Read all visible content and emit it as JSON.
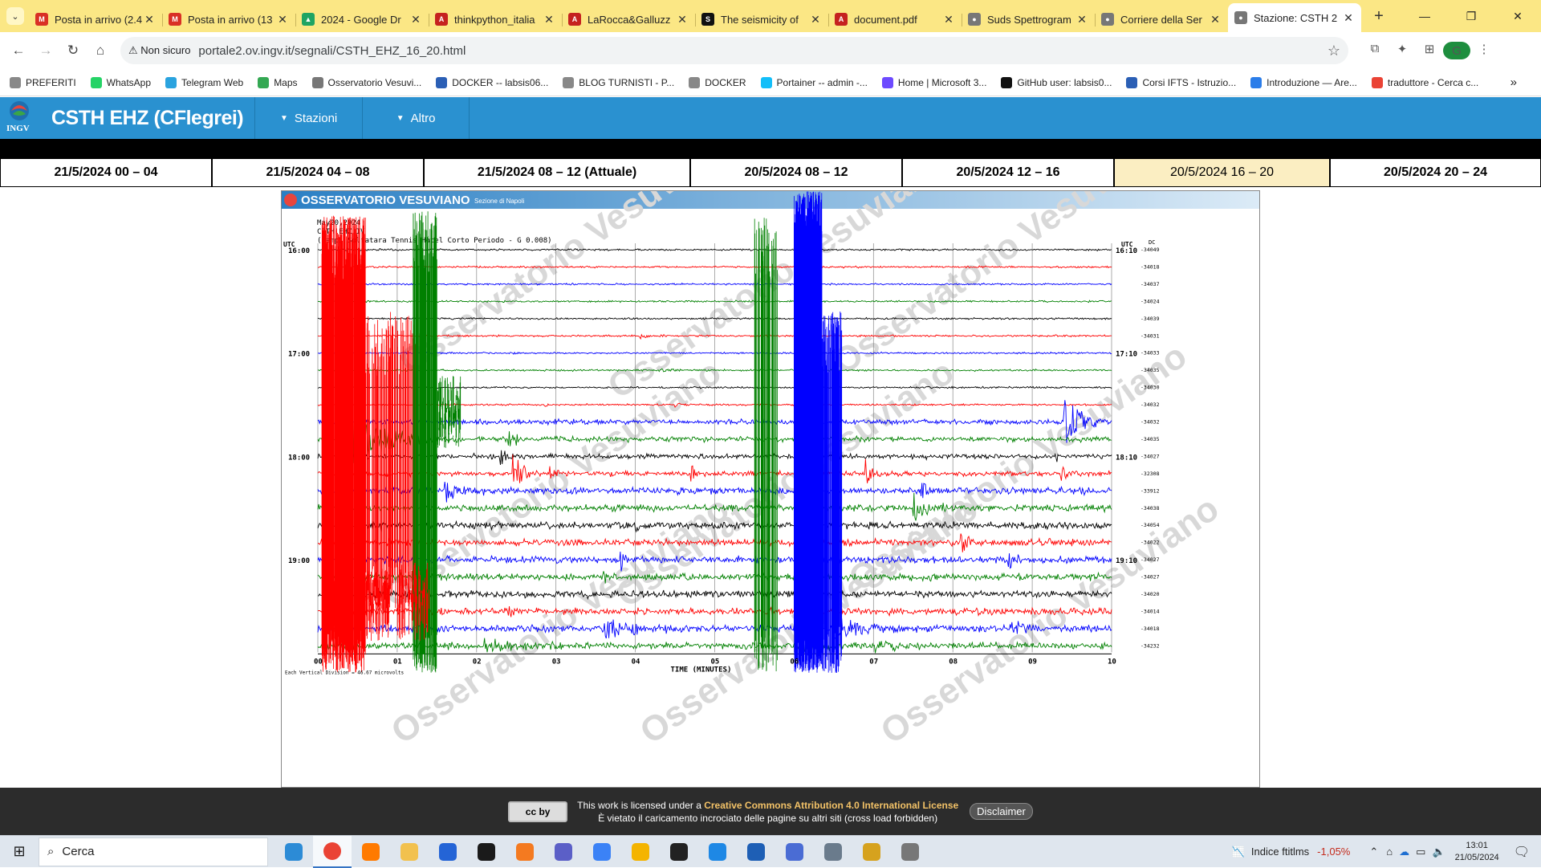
{
  "browser": {
    "tabs": [
      {
        "title": "Posta in arrivo (2.4",
        "fav_color": "#d93025",
        "fav_text": "M"
      },
      {
        "title": "Posta in arrivo (13",
        "fav_color": "#d93025",
        "fav_text": "M"
      },
      {
        "title": "2024 - Google Dr",
        "fav_color": "#1fa463",
        "fav_text": "▲"
      },
      {
        "title": "thinkpython_italia",
        "fav_color": "#c5221f",
        "fav_text": "A"
      },
      {
        "title": "LaRocca&Galluzz",
        "fav_color": "#c5221f",
        "fav_text": "A"
      },
      {
        "title": "The seismicity of",
        "fav_color": "#111111",
        "fav_text": "S"
      },
      {
        "title": "document.pdf",
        "fav_color": "#c5221f",
        "fav_text": "A"
      },
      {
        "title": "Suds Spettrogram",
        "fav_color": "#777777",
        "fav_text": "●"
      },
      {
        "title": "Corriere della Ser",
        "fav_color": "#777777",
        "fav_text": "●"
      },
      {
        "title": "Stazione: CSTH 2",
        "fav_color": "#777777",
        "fav_text": "●",
        "active": true
      }
    ],
    "security_label": "Non sicuro",
    "url": "portale2.ov.ingv.it/segnali/CSTH_EHZ_16_20.html",
    "profile_initial": "G",
    "bookmarks": [
      {
        "label": "PREFERITI",
        "color": "#888888"
      },
      {
        "label": "WhatsApp",
        "color": "#25d366"
      },
      {
        "label": "Telegram Web",
        "color": "#2aa3df"
      },
      {
        "label": "Maps",
        "color": "#34a853"
      },
      {
        "label": "Osservatorio Vesuvi...",
        "color": "#777777"
      },
      {
        "label": "DOCKER -- labsis06...",
        "color": "#2b5fb5"
      },
      {
        "label": "BLOG TURNISTI - P...",
        "color": "#888888"
      },
      {
        "label": "DOCKER",
        "color": "#888888"
      },
      {
        "label": "Portainer -- admin -...",
        "color": "#13bef9"
      },
      {
        "label": "Home | Microsoft 3...",
        "color": "#6d4aff"
      },
      {
        "label": "GitHub user: labsis0...",
        "color": "#111111"
      },
      {
        "label": "Corsi IFTS - Istruzio...",
        "color": "#2b5fb5"
      },
      {
        "label": "Introduzione — Are...",
        "color": "#2b7de9"
      },
      {
        "label": "traduttore - Cerca c...",
        "color": "#ea4335"
      }
    ]
  },
  "site": {
    "logo_text": "INGV",
    "title": "CSTH EHZ (CFlegrei)",
    "menu": [
      "Stazioni",
      "Altro"
    ]
  },
  "time_tabs": [
    {
      "label": "21/5/2024 00 – 04"
    },
    {
      "label": "21/5/2024 04 – 08"
    },
    {
      "label": "21/5/2024 08 – 12 (Attuale)"
    },
    {
      "label": "20/5/2024 08 – 12"
    },
    {
      "label": "20/5/2024 12 – 16"
    },
    {
      "label": "20/5/2024 16 – 20",
      "selected": true
    },
    {
      "label": "20/5/2024 20 – 24"
    }
  ],
  "seismogram": {
    "banner_title": "OSSERVATORIO VESUVIANO",
    "banner_sub": "Sezione di Napoli",
    "header_lines": [
      "May20,2024",
      "CSTH EHZ IV",
      "(Campi Solfatara Tennis Hotel Corto Periodo - G 0.008)"
    ],
    "left_axis_label": "UTC",
    "right_axis_label": "UTC",
    "dc_label": "DC",
    "left_hours": [
      "16:00",
      "17:00",
      "18:00",
      "19:00"
    ],
    "right_hours": [
      "16:10",
      "17:10",
      "18:10",
      "19:10"
    ],
    "dc_values": [
      "-34049",
      "-34018",
      "-34037",
      "-34024",
      "-34039",
      "-34031",
      "-34033",
      "-34035",
      "-34030",
      "-34032",
      "-34032",
      "-34035",
      "-34027",
      "-32308",
      "-33912",
      "-34038",
      "-34054",
      "-34022",
      "-34027",
      "-34027",
      "-34020",
      "-34014",
      "-34018",
      "-34232"
    ],
    "x_ticks": [
      "00",
      "01",
      "02",
      "03",
      "04",
      "05",
      "06",
      "07",
      "08",
      "09",
      "10"
    ],
    "x_label": "TIME (MINUTES)",
    "footnote": "Each Vertical Division = 46.67 microvolts",
    "watermark": "Osservatorio Vesuviano",
    "trace_colors": [
      "#000000",
      "#ff0000",
      "#0000ff",
      "#008000"
    ]
  },
  "footer": {
    "cc_badge": "cc by",
    "license_prefix": "This work is licensed under a",
    "license_link": "Creative Commons Attribution 4.0 International License",
    "license_line2": "È vietato il caricamento incrociato delle pagine su altri siti (cross load forbidden)",
    "disclaimer": "Disclaimer"
  },
  "taskbar": {
    "search_placeholder": "Cerca",
    "ftse_label": "Indice ftitlms",
    "ftse_change": "-1,05%",
    "time": "13:01",
    "date": "21/05/2024"
  }
}
